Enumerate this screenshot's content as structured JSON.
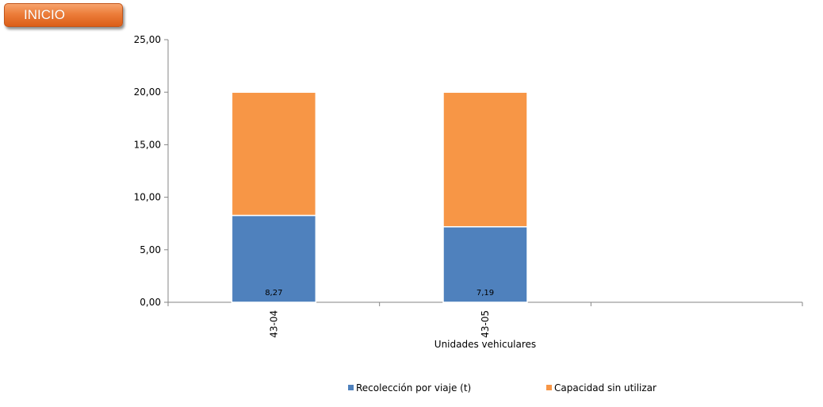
{
  "header": {
    "inicio_label": "INICIO"
  },
  "colors": {
    "series1": "#4f81bd",
    "series2": "#f79646",
    "axis": "#868686",
    "button": "#ec7d3a"
  },
  "chart_data": {
    "type": "bar",
    "stacked": true,
    "categories": [
      "43-04",
      "43-05"
    ],
    "series": [
      {
        "name": "Recolección por viaje (t)",
        "values": [
          8.27,
          7.19
        ],
        "labels": [
          "8,27",
          "7,19"
        ]
      },
      {
        "name": "Capacidad sin utilizar",
        "values": [
          11.73,
          12.81
        ]
      }
    ],
    "title": "",
    "xlabel": "Unidades vehiculares",
    "ylabel": "",
    "ylim": [
      0,
      25
    ],
    "yticks": [
      "0,00",
      "5,00",
      "10,00",
      "15,00",
      "20,00",
      "25,00"
    ],
    "grid": false,
    "legend_position": "bottom"
  }
}
